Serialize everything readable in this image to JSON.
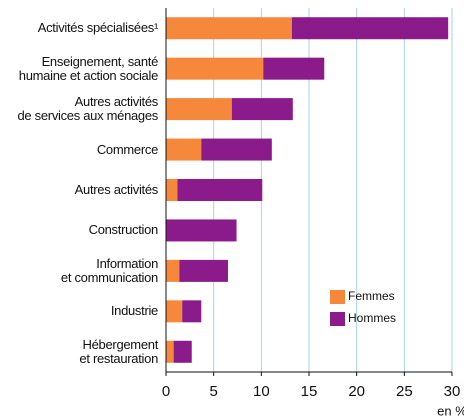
{
  "chart_data": {
    "type": "stacked_barh",
    "categories": [
      "Activités spécialisées¹",
      "Enseignement, santé\nhumaine et action sociale",
      "Autres activités\nde services aux ménages",
      "Commerce",
      "Autres activités",
      "Construction",
      "Information\net communication",
      "Industrie",
      "Hébergement\net restauration"
    ],
    "series": [
      {
        "name": "Femmes",
        "color": "#f5883a",
        "values": [
          13.2,
          10.2,
          6.9,
          3.7,
          1.2,
          0,
          1.4,
          1.7,
          0.8
        ]
      },
      {
        "name": "Hommes",
        "color": "#8b1a8b",
        "values": [
          16.4,
          6.4,
          6.4,
          7.4,
          8.9,
          7.4,
          5.1,
          2.0,
          1.9
        ]
      }
    ],
    "xlim": [
      0,
      30
    ],
    "xticks": [
      0,
      5,
      10,
      15,
      20,
      25,
      30
    ],
    "x_unit": "en %",
    "grid": true,
    "legend": "lower right"
  }
}
